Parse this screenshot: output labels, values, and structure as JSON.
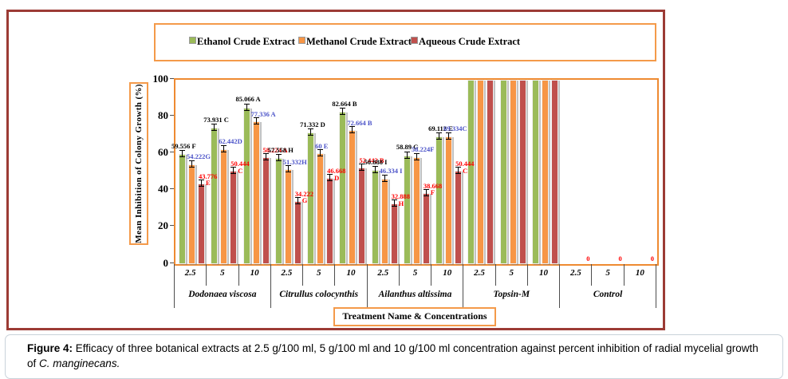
{
  "figure": {
    "caption": {
      "prefix": "Figure 4:",
      "body": " Efficacy of three botanical extracts at 2.5 g/100 ml, 5 g/100 ml and 10 g/100 ml concentration against percent inhibition of radial mycelial growth of ",
      "species": "C. manginecans."
    }
  },
  "colors": {
    "frame_border": "#9C3B35",
    "accent_orange": "#F49A4A",
    "plot_border": "#EE8A31"
  },
  "chart_data": {
    "type": "bar",
    "title": "",
    "ylabel": "Mean Inhibition of Colony Growth (%)",
    "xlabel": "Treatment Name & Concentrations",
    "ylim": [
      0,
      100
    ],
    "yticks": [
      0,
      20,
      40,
      60,
      80,
      100
    ],
    "grid": false,
    "legend_position": "top",
    "series": [
      {
        "name": "Ethanol Crude Extract",
        "color": "#9BBB59",
        "label_color": "#000000"
      },
      {
        "name": "Methanol Crude Extract",
        "color": "#F79646",
        "label_color": "#4A52C8"
      },
      {
        "name": "Aqueous Crude Extract",
        "color": "#C0504D",
        "label_color": "#FF0000"
      }
    ],
    "groups": [
      {
        "name": "Dodonaea viscosa",
        "concentrations": [
          {
            "conc": "2.5",
            "values": [
              59.556,
              54.222,
              43.776
            ],
            "labels": [
              [
                "59.556 F"
              ],
              [
                "54.222G"
              ],
              [
                "43.776",
                "E"
              ]
            ]
          },
          {
            "conc": "5",
            "values": [
              73.931,
              62.442,
              50.444
            ],
            "labels": [
              [
                "73.931 C"
              ],
              [
                "62.442D"
              ],
              [
                "50.444",
                "C"
              ]
            ]
          },
          {
            "conc": "10",
            "values": [
              85.066,
              77.336,
              58.224
            ],
            "labels": [
              [
                "85.066 A"
              ],
              [
                "77.336 A"
              ],
              [
                "58.224 A"
              ]
            ]
          }
        ]
      },
      {
        "name": "Citrullus colocynthis",
        "concentrations": [
          {
            "conc": "2.5",
            "values": [
              57.558,
              51.332,
              34.222
            ],
            "labels": [
              [
                "57.558 H"
              ],
              [
                "51.332H"
              ],
              [
                "34.222",
                "G"
              ]
            ]
          },
          {
            "conc": "5",
            "values": [
              71.332,
              60,
              46.668
            ],
            "labels": [
              [
                "71.332 D"
              ],
              [
                "60 E"
              ],
              [
                "46.668",
                "D"
              ]
            ]
          },
          {
            "conc": "10",
            "values": [
              82.664,
              72.664,
              52.442
            ],
            "labels": [
              [
                "82.664 B"
              ],
              [
                "72.664 B"
              ],
              [
                "52.442 B"
              ]
            ]
          }
        ]
      },
      {
        "name": "Ailanthus altissima",
        "concentrations": [
          {
            "conc": "2.5",
            "values": [
              50.888,
              46.334,
              32.888
            ],
            "labels": [
              [
                "50.888 I"
              ],
              [
                "46.334 I"
              ],
              [
                "32.888",
                "H"
              ]
            ]
          },
          {
            "conc": "5",
            "values": [
              58.89,
              58.224,
              38.668
            ],
            "labels": [
              [
                "58.89 G"
              ],
              [
                "58.224F"
              ],
              [
                "38.668",
                "F"
              ]
            ]
          },
          {
            "conc": "10",
            "values": [
              69.112,
              69.334,
              50.444
            ],
            "labels": [
              [
                "69.112 E"
              ],
              [
                "69.334C"
              ],
              [
                "50.444",
                "C"
              ]
            ]
          }
        ]
      },
      {
        "name": "Topsin-M",
        "concentrations": [
          {
            "conc": "2.5",
            "values": [
              100,
              100,
              100
            ],
            "labels": [
              null,
              null,
              null
            ]
          },
          {
            "conc": "5",
            "values": [
              100,
              100,
              100
            ],
            "labels": [
              null,
              null,
              null
            ]
          },
          {
            "conc": "10",
            "values": [
              100,
              100,
              100
            ],
            "labels": [
              null,
              null,
              null
            ]
          }
        ]
      },
      {
        "name": "Control",
        "concentrations": [
          {
            "conc": "2.5",
            "values": [
              0,
              0,
              0
            ],
            "labels": [
              null,
              null,
              [
                "0"
              ]
            ]
          },
          {
            "conc": "5",
            "values": [
              0,
              0,
              0
            ],
            "labels": [
              null,
              null,
              [
                "0"
              ]
            ]
          },
          {
            "conc": "10",
            "values": [
              0,
              0,
              0
            ],
            "labels": [
              null,
              null,
              [
                "0"
              ]
            ]
          }
        ]
      }
    ]
  }
}
